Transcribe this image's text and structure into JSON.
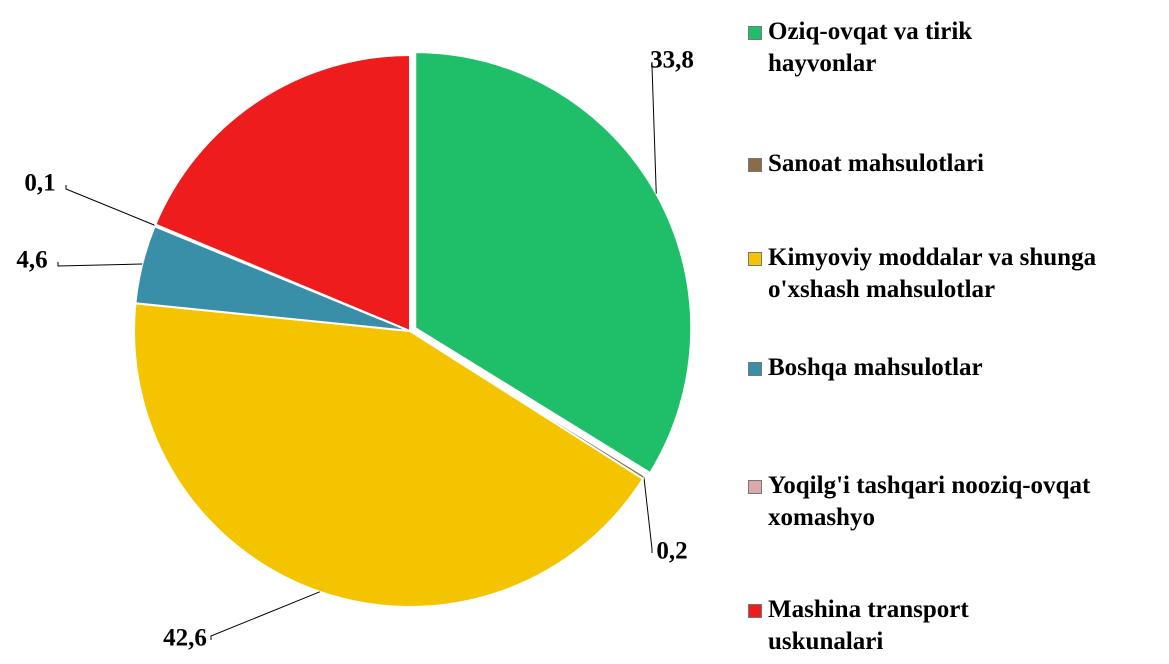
{
  "chart_data": {
    "type": "pie",
    "categories": [
      "Oziq-ovqat va tirik hayvonlar",
      "Sanoat mahsulotlari",
      "Kimyoviy moddalar va shunga o'xshash mahsulotlar",
      "Boshqa mahsulotlar",
      "Yoqilg'i tashqari nooziq-ovqat xomashyo",
      "Mashina transport uskunalari"
    ],
    "values": [
      33.8,
      0.2,
      42.6,
      4.6,
      0.1,
      18.7
    ],
    "value_labels": [
      "33,8",
      "0,2",
      "42,6",
      "4,6",
      "0,1",
      null
    ],
    "colors": [
      "#1fbf6a",
      "#8b6b4a",
      "#f5c400",
      "#3a8fa8",
      "#dba9a9",
      "#ee1c1c"
    ],
    "legend": "right"
  }
}
